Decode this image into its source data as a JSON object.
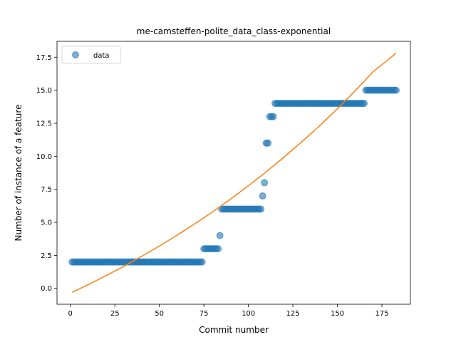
{
  "chart_data": {
    "type": "scatter",
    "title": "me-camsteffen-polite_data_class-exponential",
    "xlabel": "Commit number",
    "ylabel": "Number of instance of a feature",
    "xlim": [
      -7.5,
      191
    ],
    "ylim": [
      -1.2,
      18.7
    ],
    "xticks": [
      0,
      25,
      50,
      75,
      100,
      125,
      150,
      175
    ],
    "yticks": [
      0.0,
      2.5,
      5.0,
      7.5,
      10.0,
      12.5,
      15.0,
      17.5
    ],
    "xtick_labels": [
      "0",
      "25",
      "50",
      "75",
      "100",
      "125",
      "150",
      "175"
    ],
    "ytick_labels": [
      "0.0",
      "2.5",
      "5.0",
      "7.5",
      "10.0",
      "12.5",
      "15.0",
      "17.5"
    ],
    "grid": false,
    "legend_position": "top-left",
    "legend": [
      {
        "label": "data",
        "marker": "circle",
        "color": "#1f77b4"
      }
    ],
    "colors": {
      "data": "#1f77b4",
      "fit": "#ff7f0e"
    },
    "series": [
      {
        "name": "data",
        "kind": "scatter",
        "segments": [
          {
            "x_start": 1,
            "x_end": 74,
            "y": 2
          },
          {
            "x_start": 75,
            "x_end": 83,
            "y": 3
          },
          {
            "x_start": 84,
            "x_end": 84,
            "y": 4
          },
          {
            "x_start": 85,
            "x_end": 107,
            "y": 6
          },
          {
            "x_start": 108,
            "x_end": 108,
            "y": 7
          },
          {
            "x_start": 109,
            "x_end": 109,
            "y": 8
          },
          {
            "x_start": 110,
            "x_end": 111,
            "y": 11
          },
          {
            "x_start": 112,
            "x_end": 114,
            "y": 13
          },
          {
            "x_start": 115,
            "x_end": 165,
            "y": 14
          },
          {
            "x_start": 166,
            "x_end": 183,
            "y": 15
          }
        ]
      },
      {
        "kind": "line",
        "x": [
          1,
          10,
          20,
          30,
          40,
          50,
          60,
          70,
          80,
          90,
          100,
          110,
          120,
          130,
          140,
          150,
          160,
          170,
          183
        ],
        "y": [
          -0.3,
          0.28,
          0.96,
          1.67,
          2.42,
          3.2,
          4.03,
          4.9,
          5.8,
          6.76,
          7.77,
          8.82,
          9.93,
          11.1,
          12.3,
          13.6,
          14.96,
          16.39,
          17.8
        ]
      }
    ]
  }
}
